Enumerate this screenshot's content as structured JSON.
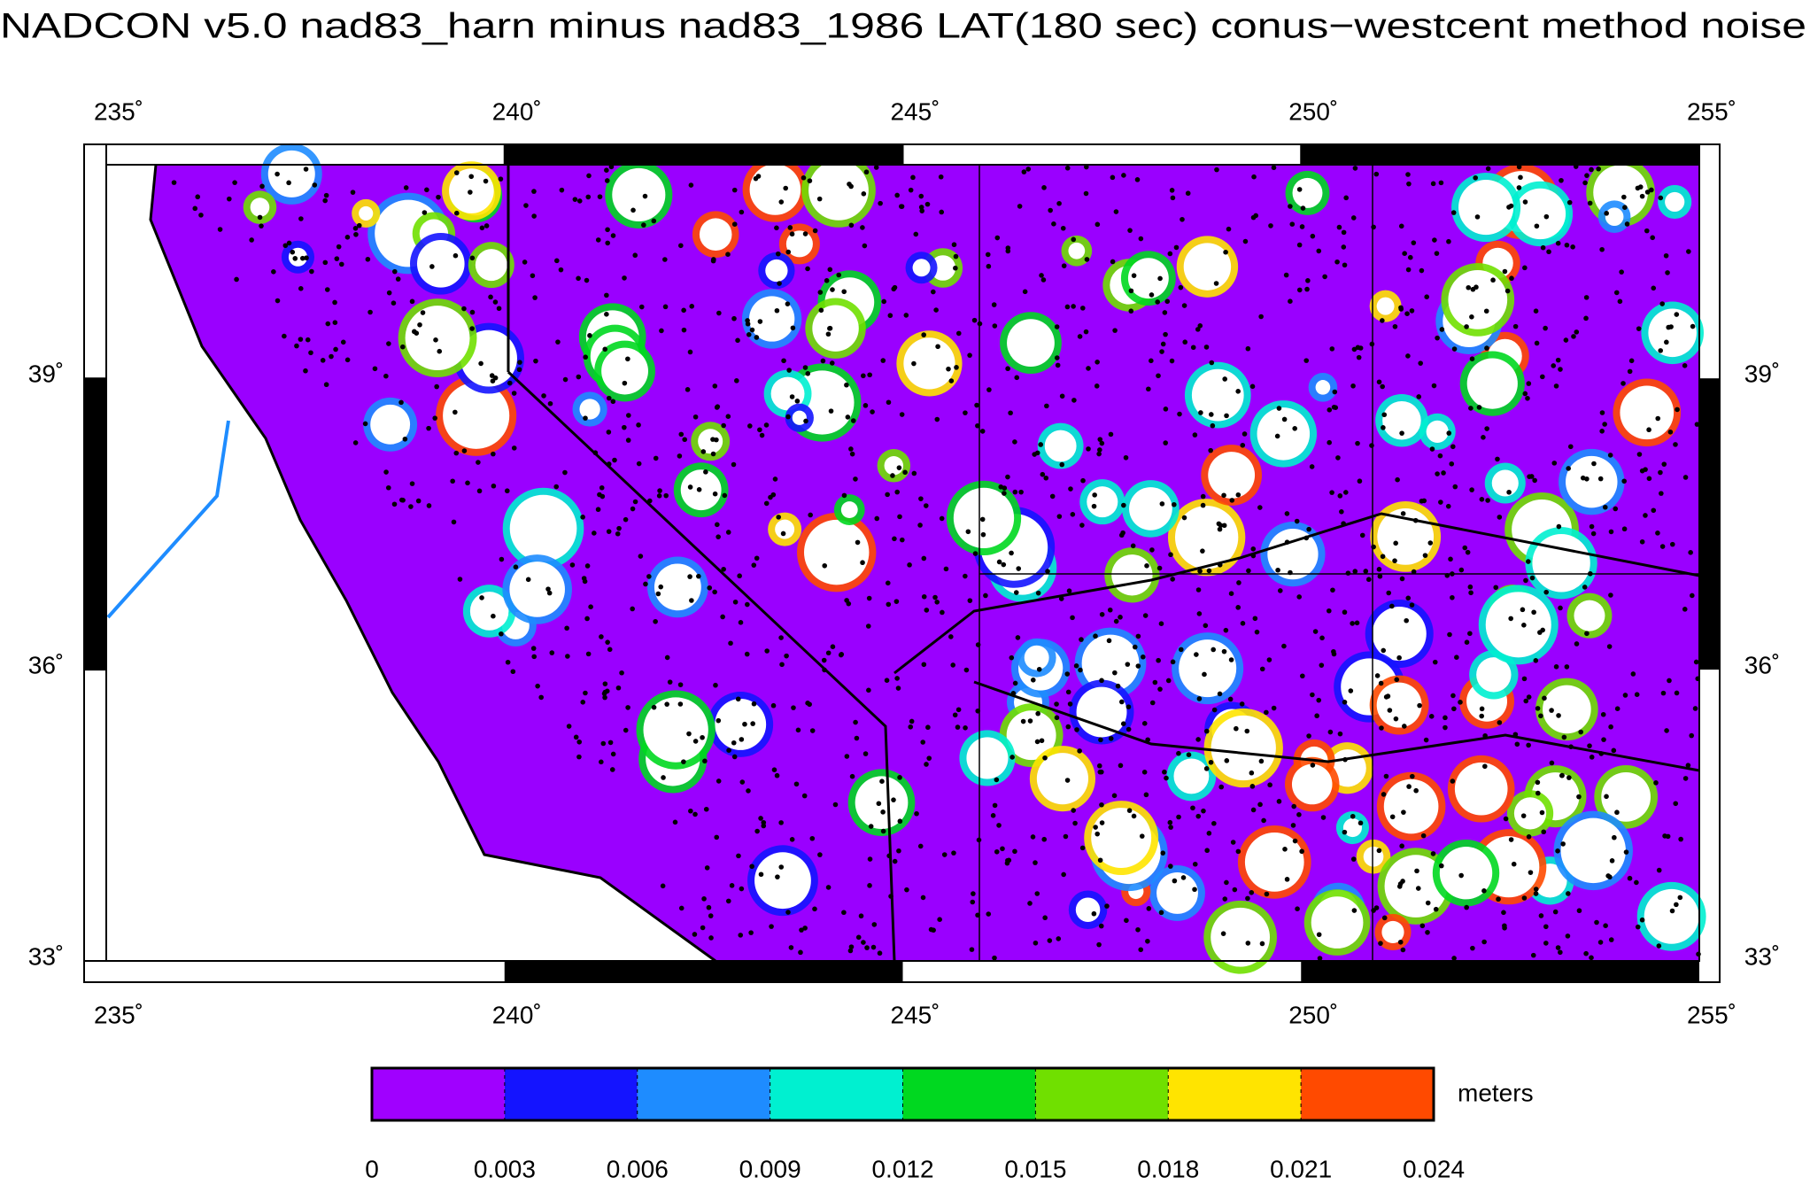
{
  "title": "NADCON v5.0 nad83_harn minus nad83_1986 LAT(180 sec) conus−westcent method noise",
  "map": {
    "lonlim": [
      235,
      255
    ],
    "latlim": [
      33,
      41.2
    ],
    "lon_ticks": [
      {
        "value": 235,
        "label": "235˚"
      },
      {
        "value": 240,
        "label": "240˚"
      },
      {
        "value": 245,
        "label": "245˚"
      },
      {
        "value": 250,
        "label": "250˚"
      },
      {
        "value": 255,
        "label": "255˚"
      }
    ],
    "lat_ticks": [
      {
        "value": 33,
        "label": "33˚"
      },
      {
        "value": 36,
        "label": "36˚"
      },
      {
        "value": 39,
        "label": "39˚"
      }
    ]
  },
  "colorbar": {
    "unit": "meters",
    "ticks": [
      0,
      0.003,
      0.006,
      0.009,
      0.012,
      0.015,
      0.018,
      0.021,
      0.024
    ],
    "colors": [
      "#a000ff",
      "#1414ff",
      "#1e8cff",
      "#00f0d0",
      "#00d820",
      "#70e000",
      "#ffe400",
      "#ff4a00"
    ]
  }
}
